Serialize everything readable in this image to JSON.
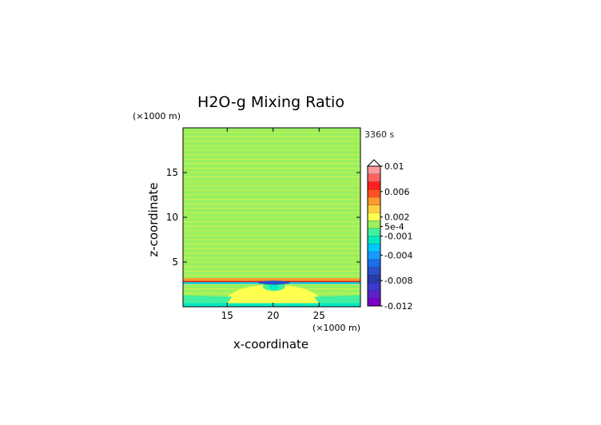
{
  "chart_data": {
    "type": "heatmap",
    "title": "H2O-g Mixing Ratio",
    "time_label": "3360 s",
    "xlabel": "x-coordinate",
    "ylabel": "z-coordinate",
    "x_unit": "(×1000 m)",
    "y_unit": "(×1000 m)",
    "xlim": [
      10.2,
      29.5
    ],
    "ylim": [
      0,
      20
    ],
    "x_ticks": [
      15,
      20,
      25
    ],
    "y_ticks": [
      5,
      10,
      15
    ],
    "background_value": 0.0012,
    "bands": [
      {
        "z0": 2.75,
        "z1": 3.2,
        "value": 0.0045,
        "note": "red/orange moist band"
      },
      {
        "z0": 2.55,
        "z1": 2.75,
        "value": -0.0025,
        "note": "teal/cyan dry band"
      },
      {
        "z0": 0.4,
        "z1": 1.0,
        "value": -0.0008,
        "note": "green near-surface"
      },
      {
        "z0": 0.0,
        "z1": 0.4,
        "value": -0.0022,
        "note": "cyan surface layer"
      }
    ],
    "plume": {
      "x_center": 20,
      "x_halfwidth": 5.5,
      "z_top": 2.5,
      "value": 0.0026
    },
    "core": {
      "x_center": 20.1,
      "z": 2.3,
      "value": -0.002
    },
    "colorbar": {
      "labels": [
        "0.01",
        "0.006",
        "0.002",
        "5e-4",
        "-0.001",
        "-0.004",
        "-0.008",
        "-0.012"
      ],
      "label_values": [
        0.01,
        0.006,
        0.002,
        0.0005,
        -0.001,
        -0.004,
        -0.008,
        -0.012
      ],
      "range": [
        -0.012,
        0.01
      ],
      "extend": "max",
      "colors": [
        "#7a00c8",
        "#5a22c8",
        "#3a3ad0",
        "#2a3aa8",
        "#2a50c8",
        "#1a6ee8",
        "#1a9aff",
        "#00c8ff",
        "#00e8c0",
        "#40f0a0",
        "#9af060",
        "#ffff50",
        "#ffd040",
        "#ff9a30",
        "#ff5020",
        "#ff2020",
        "#ff6060",
        "#ff9a9a"
      ]
    }
  }
}
